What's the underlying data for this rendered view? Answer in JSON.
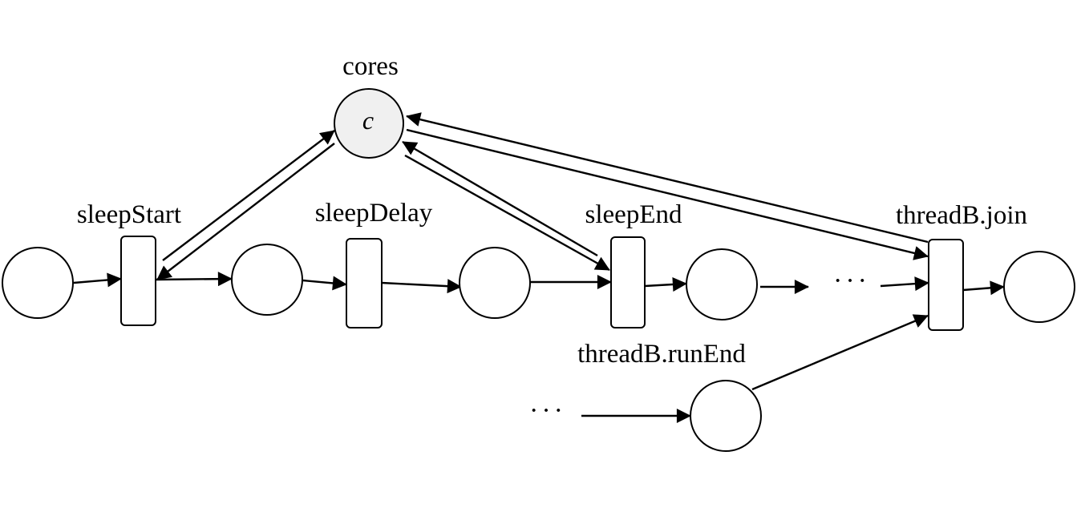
{
  "shared_place": {
    "label": "cores",
    "token": "c"
  },
  "transitions": {
    "sleep_start": "sleepStart",
    "sleep_delay": "sleepDelay",
    "sleep_end": "sleepEnd",
    "thread_b_join": "threadB.join"
  },
  "places": {
    "thread_b_run_end": "threadB.runEnd"
  },
  "ellipsis": {
    "main_chain": "···",
    "side_chain": "···"
  }
}
